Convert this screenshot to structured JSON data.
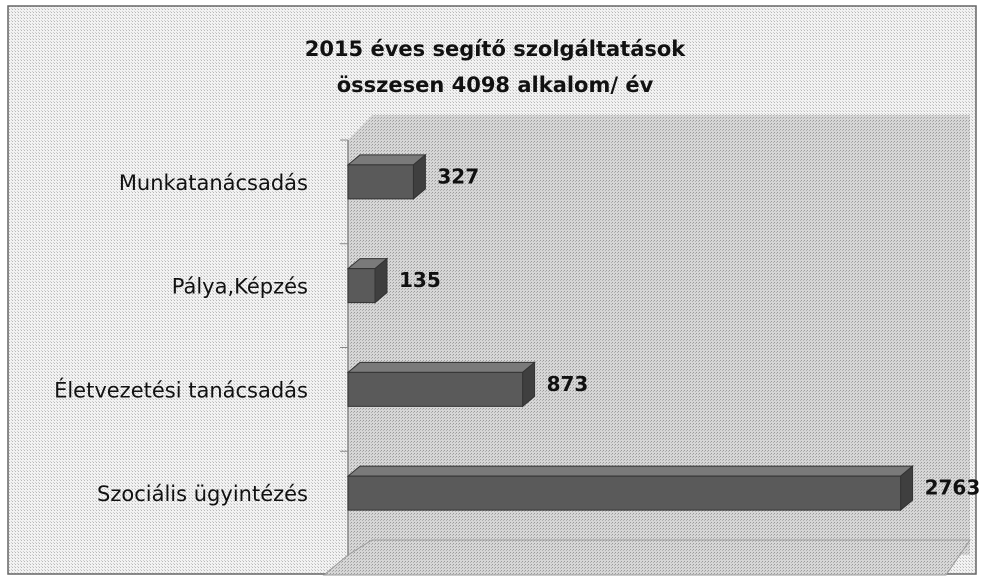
{
  "chart_data": {
    "type": "bar",
    "orientation": "horizontal",
    "title": "2015 éves segítő szolgáltatások",
    "subtitle": "összesen 4098 alkalom/ év",
    "categories": [
      "Munkatanácsadás",
      "Pálya,Képzés",
      "Életvezetési tanácsadás",
      "Szociális ügyintézés"
    ],
    "values": [
      327,
      135,
      873,
      2763
    ],
    "color": "#5a5a5a",
    "xlim": [
      0,
      3000
    ]
  }
}
